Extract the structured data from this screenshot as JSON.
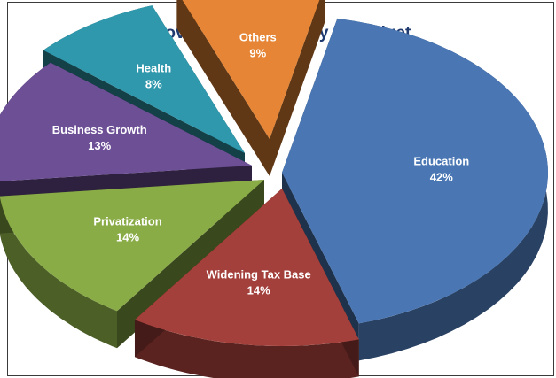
{
  "chart_data": {
    "type": "pie",
    "title": "Government's Priority in Budget",
    "categories": [
      "Education",
      "Widening Tax Base",
      "Privatization",
      "Business Growth",
      "Health",
      "Others"
    ],
    "values": [
      42,
      14,
      14,
      13,
      8,
      9
    ],
    "value_labels": [
      "42%",
      "14%",
      "14%",
      "13%",
      "8%",
      "9%"
    ],
    "colors": [
      "#4a77b4",
      "#a4403b",
      "#8aac47",
      "#6d4f96",
      "#2f98ac",
      "#e58535"
    ],
    "exploded": true,
    "three_d": true,
    "legend": "none"
  }
}
